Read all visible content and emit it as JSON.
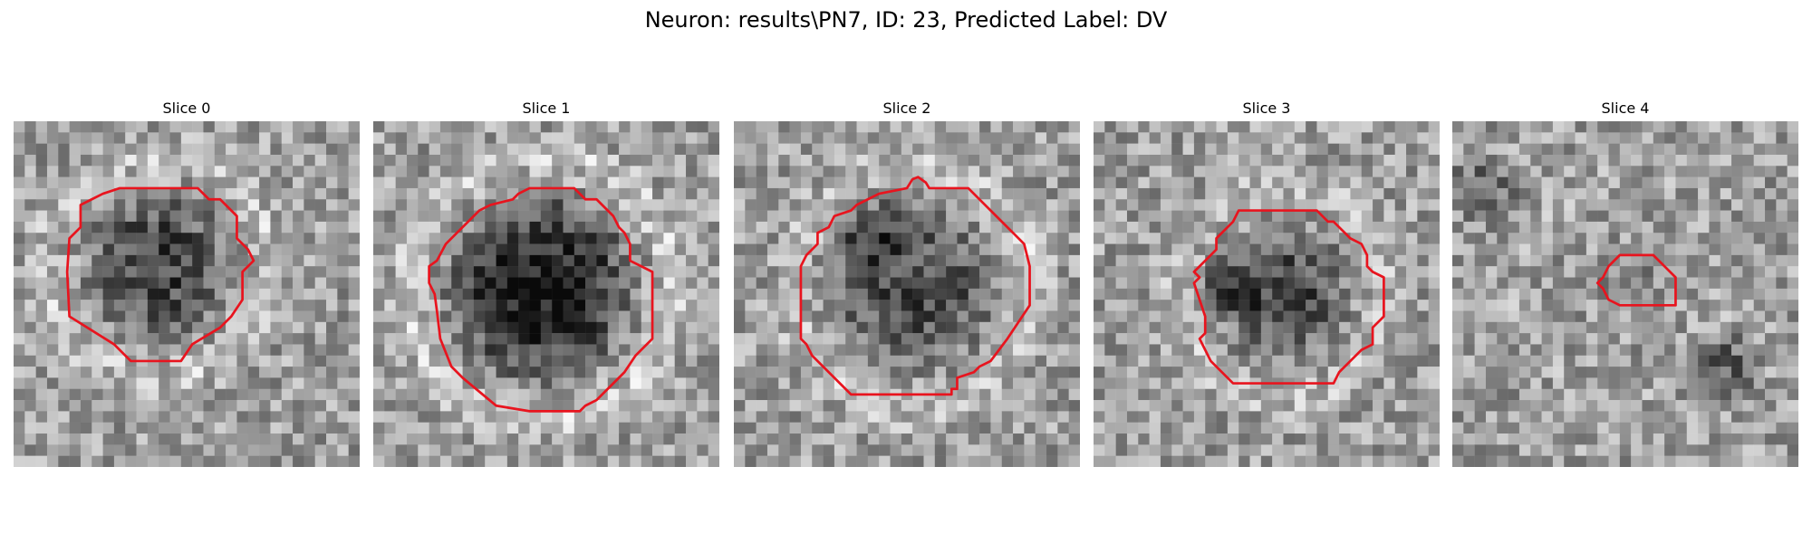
{
  "figure": {
    "title": "Neuron: results\\PN7, ID: 23, Predicted Label: DV"
  },
  "panels": [
    {
      "title": "Slice 0",
      "contour_color": "#e8141e"
    },
    {
      "title": "Slice 1",
      "contour_color": "#e8141e"
    },
    {
      "title": "Slice 2",
      "contour_color": "#e8141e"
    },
    {
      "title": "Slice 3",
      "contour_color": "#e8141e"
    },
    {
      "title": "Slice 4",
      "contour_color": "#e8141e"
    }
  ]
}
